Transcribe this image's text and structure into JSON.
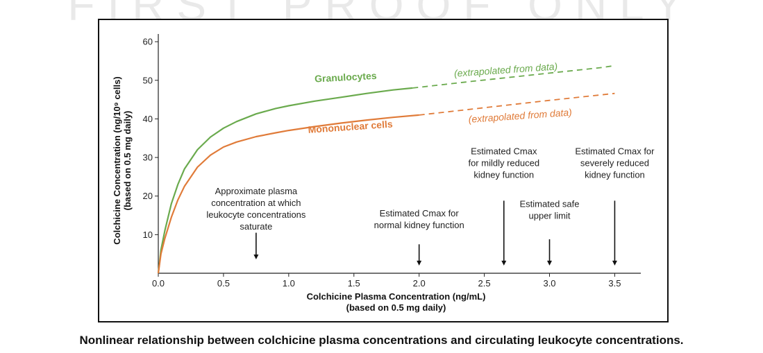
{
  "watermark": "FIRST PROOF ONLY",
  "caption": "Nonlinear relationship between colchicine plasma concentrations and circulating leukocyte concentrations.",
  "colors": {
    "granulocytes": "#6aaa4d",
    "mononuclear": "#e07b39",
    "axis": "#222222"
  },
  "chart_data": {
    "type": "line",
    "xlabel": [
      "Colchicine Plasma Concentration (ng/mL)",
      "(based on 0.5 mg daily)"
    ],
    "ylabel": [
      "Colchicine Concentration (ng/10⁹ cells)",
      "(based on 0.5 mg daily)"
    ],
    "xlim": [
      0,
      3.7
    ],
    "ylim": [
      0,
      62
    ],
    "xticks": [
      "0.0",
      "0.5",
      "1.0",
      "1.5",
      "2.0",
      "2.5",
      "3.0",
      "3.5"
    ],
    "yticks": [
      "10",
      "20",
      "30",
      "40",
      "50",
      "60"
    ],
    "grid": false,
    "series": [
      {
        "name": "Granulocytes",
        "x": [
          0,
          0.02,
          0.05,
          0.1,
          0.15,
          0.2,
          0.3,
          0.4,
          0.5,
          0.6,
          0.75,
          0.9,
          1.0,
          1.2,
          1.4,
          1.6,
          1.8,
          1.95
        ],
        "y": [
          0,
          6,
          11,
          18,
          23,
          27,
          32,
          35.3,
          37.6,
          39.3,
          41.3,
          42.7,
          43.4,
          44.6,
          45.6,
          46.6,
          47.5,
          48
        ],
        "extrapolated": {
          "x": [
            1.95,
            2.4,
            2.9,
            3.4,
            3.5
          ],
          "y": [
            48,
            49.7,
            51.5,
            53.3,
            53.8
          ]
        },
        "extrapolation_label": "(extrapolated from data)"
      },
      {
        "name": "Mononuclear cells",
        "x": [
          0,
          0.02,
          0.05,
          0.1,
          0.15,
          0.2,
          0.3,
          0.4,
          0.5,
          0.6,
          0.75,
          0.9,
          1.0,
          1.2,
          1.4,
          1.6,
          1.8,
          2.0
        ],
        "y": [
          0,
          5,
          9,
          14.5,
          19,
          22.5,
          27.5,
          30.6,
          32.7,
          34,
          35.4,
          36.4,
          37,
          38,
          38.9,
          39.7,
          40.4,
          41
        ],
        "extrapolated": {
          "x": [
            2.0,
            2.5,
            3.0,
            3.5
          ],
          "y": [
            41,
            42.9,
            44.8,
            46.6
          ]
        },
        "extrapolation_label": "(extrapolated from data)"
      }
    ],
    "annotations": [
      {
        "x": 0.75,
        "lines": [
          "Approximate plasma",
          "concentration at which",
          "leukocyte concentrations",
          "saturate"
        ],
        "arrow_top": 10.5,
        "arrow_bottom": 3.6
      },
      {
        "x": 2.0,
        "lines": [
          "Estimated Cmax for",
          "normal kidney function"
        ],
        "arrow_top": 7.5,
        "arrow_bottom": 2.0
      },
      {
        "x": 2.65,
        "lines": [
          "Estimated Cmax",
          "for mildly reduced",
          "kidney function"
        ],
        "arrow_top": 18.8,
        "arrow_bottom": 2.0
      },
      {
        "x": 3.0,
        "lines": [
          "Estimated safe",
          "upper limit"
        ],
        "arrow_top": 8.8,
        "arrow_bottom": 2.0
      },
      {
        "x": 3.5,
        "lines": [
          "Estimated Cmax for",
          "severely reduced",
          "kidney function"
        ],
        "arrow_top": 18.8,
        "arrow_bottom": 2.0
      }
    ]
  }
}
